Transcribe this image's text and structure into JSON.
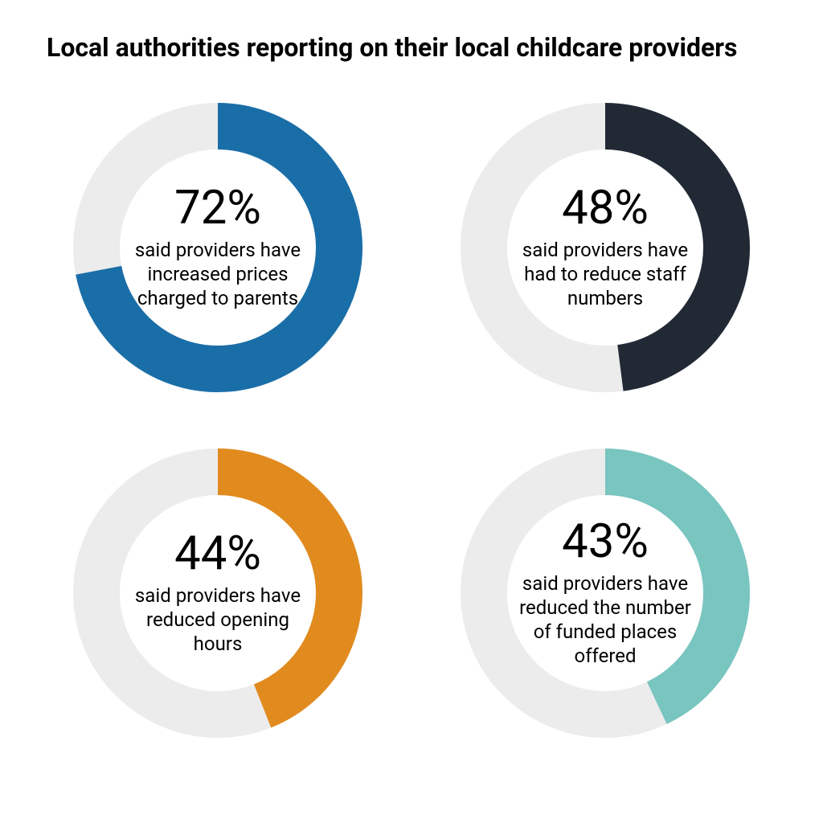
{
  "title": "Local authorities reporting on their local childcare providers",
  "title_fontsize": 32,
  "background_color": "#ffffff",
  "layout": {
    "rows": 2,
    "cols": 2
  },
  "donut": {
    "outer_radius": 180,
    "inner_radius": 122,
    "track_color": "#ececec",
    "start_angle_deg": 0,
    "direction": "clockwise",
    "pct_fontsize": 58,
    "caption_fontsize": 24,
    "text_color": "#000000"
  },
  "items": [
    {
      "value": 72,
      "pct_label": "72%",
      "caption": "said providers have increased prices charged to parents",
      "fill_color": "#1a6ea8"
    },
    {
      "value": 48,
      "pct_label": "48%",
      "caption": "said providers have had to reduce staff numbers",
      "fill_color": "#212935"
    },
    {
      "value": 44,
      "pct_label": "44%",
      "caption": "said providers have reduced opening hours",
      "fill_color": "#e18b1f"
    },
    {
      "value": 43,
      "pct_label": "43%",
      "caption": "said providers have reduced the number of funded places offered",
      "fill_color": "#79c5c0"
    }
  ]
}
